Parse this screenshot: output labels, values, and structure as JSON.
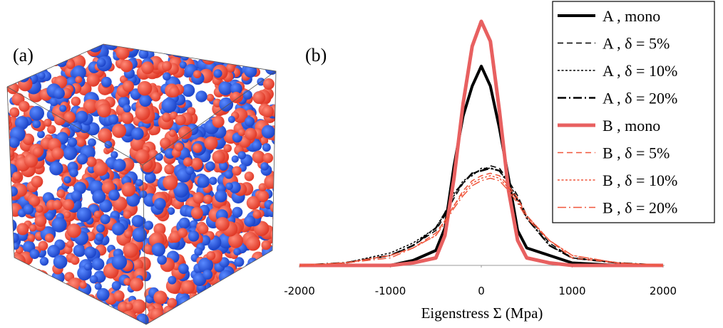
{
  "panel_a_label": "(a)",
  "chart_data": {
    "type": "line",
    "annotation": "(b)",
    "xlabel": "Eigenstress Σ (Mpa)",
    "xlim": [
      -2000,
      2000
    ],
    "xticks": [
      -2000,
      -1000,
      0,
      1000,
      2000
    ],
    "ylim": [
      0,
      1
    ],
    "x": [
      -2000,
      -1500,
      -1000,
      -750,
      -500,
      -400,
      -300,
      -200,
      -100,
      0,
      100,
      200,
      300,
      400,
      500,
      750,
      1000,
      1500,
      2000
    ],
    "series": [
      {
        "name": "A , mono",
        "color": "#000000",
        "linestyle": "solid",
        "linewidth": 4,
        "values": [
          0,
          0,
          0,
          0.02,
          0.06,
          0.15,
          0.4,
          0.6,
          0.72,
          0.8,
          0.72,
          0.55,
          0.35,
          0.14,
          0.07,
          0.04,
          0.01,
          0,
          0
        ]
      },
      {
        "name": "A , δ = 5%",
        "color": "#000000",
        "linestyle": "dashed",
        "linewidth": 1.5,
        "values": [
          0,
          0.01,
          0.04,
          0.08,
          0.14,
          0.2,
          0.27,
          0.33,
          0.37,
          0.38,
          0.4,
          0.39,
          0.34,
          0.28,
          0.2,
          0.09,
          0.03,
          0.01,
          0
        ]
      },
      {
        "name": "A , δ = 10%",
        "color": "#000000",
        "linestyle": "dotted",
        "linewidth": 1.5,
        "values": [
          0,
          0.01,
          0.05,
          0.09,
          0.15,
          0.21,
          0.28,
          0.34,
          0.36,
          0.39,
          0.39,
          0.38,
          0.33,
          0.27,
          0.19,
          0.08,
          0.03,
          0.01,
          0
        ]
      },
      {
        "name": "A , δ = 20%",
        "color": "#000000",
        "linestyle": "dashdot",
        "linewidth": 2.5,
        "values": [
          0,
          0.01,
          0.04,
          0.08,
          0.15,
          0.21,
          0.29,
          0.33,
          0.37,
          0.38,
          0.39,
          0.38,
          0.33,
          0.26,
          0.19,
          0.08,
          0.03,
          0.01,
          0
        ]
      },
      {
        "name": "B , mono",
        "color": "#e86060",
        "linestyle": "solid",
        "linewidth": 5,
        "values": [
          0,
          0,
          0,
          0.01,
          0.03,
          0.12,
          0.35,
          0.65,
          0.88,
          0.98,
          0.9,
          0.62,
          0.3,
          0.1,
          0.03,
          0.01,
          0,
          0,
          0
        ]
      },
      {
        "name": "B , δ = 5%",
        "color": "#f0553a",
        "linestyle": "dashed",
        "linewidth": 1.5,
        "values": [
          0,
          0.01,
          0.04,
          0.07,
          0.13,
          0.18,
          0.24,
          0.3,
          0.34,
          0.36,
          0.37,
          0.36,
          0.32,
          0.27,
          0.2,
          0.1,
          0.03,
          0.01,
          0
        ]
      },
      {
        "name": "B , δ = 10%",
        "color": "#f0553a",
        "linestyle": "dotted",
        "linewidth": 1.5,
        "values": [
          0,
          0.01,
          0.04,
          0.07,
          0.12,
          0.18,
          0.24,
          0.29,
          0.33,
          0.35,
          0.36,
          0.35,
          0.31,
          0.26,
          0.2,
          0.1,
          0.04,
          0.01,
          0
        ]
      },
      {
        "name": "B , δ = 20%",
        "color": "#f0553a",
        "linestyle": "dashdot",
        "linewidth": 1.5,
        "values": [
          0,
          0.01,
          0.03,
          0.07,
          0.12,
          0.17,
          0.23,
          0.28,
          0.32,
          0.34,
          0.35,
          0.34,
          0.3,
          0.25,
          0.19,
          0.1,
          0.04,
          0.01,
          0
        ]
      }
    ]
  }
}
